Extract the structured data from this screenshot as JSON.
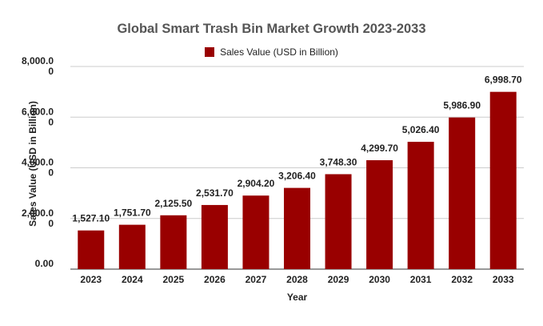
{
  "chart_data": {
    "type": "bar",
    "title": "Global Smart Trash Bin Market Growth 2023-2033",
    "xlabel": "Year",
    "ylabel": "Sales Value (USD in Billion)",
    "ylim": [
      0,
      8000
    ],
    "y_ticks": [
      {
        "value": 0,
        "lines": [
          "0.00"
        ]
      },
      {
        "value": 2000,
        "lines": [
          "2,000.0",
          "0"
        ]
      },
      {
        "value": 4000,
        "lines": [
          "4,000.0",
          "0"
        ]
      },
      {
        "value": 6000,
        "lines": [
          "6,000.0",
          "0"
        ]
      },
      {
        "value": 8000,
        "lines": [
          "8,000.0",
          "0"
        ]
      }
    ],
    "grid": true,
    "legend_position": "top",
    "categories": [
      "2023",
      "2024",
      "2025",
      "2026",
      "2027",
      "2028",
      "2029",
      "2030",
      "2031",
      "2032",
      "2033"
    ],
    "series": [
      {
        "name": "Sales Value (USD in Billion)",
        "color": "#990000",
        "values": [
          1527.1,
          1751.7,
          2125.5,
          2531.7,
          2904.2,
          3206.4,
          3748.3,
          4299.7,
          5026.4,
          5986.9,
          6998.7
        ],
        "labels": [
          "1,527.10",
          "1,751.70",
          "2,125.50",
          "2,531.70",
          "2,904.20",
          "3,206.40",
          "3,748.30",
          "4,299.70",
          "5,026.40",
          "5,986.90",
          "6,998.70"
        ]
      }
    ]
  }
}
